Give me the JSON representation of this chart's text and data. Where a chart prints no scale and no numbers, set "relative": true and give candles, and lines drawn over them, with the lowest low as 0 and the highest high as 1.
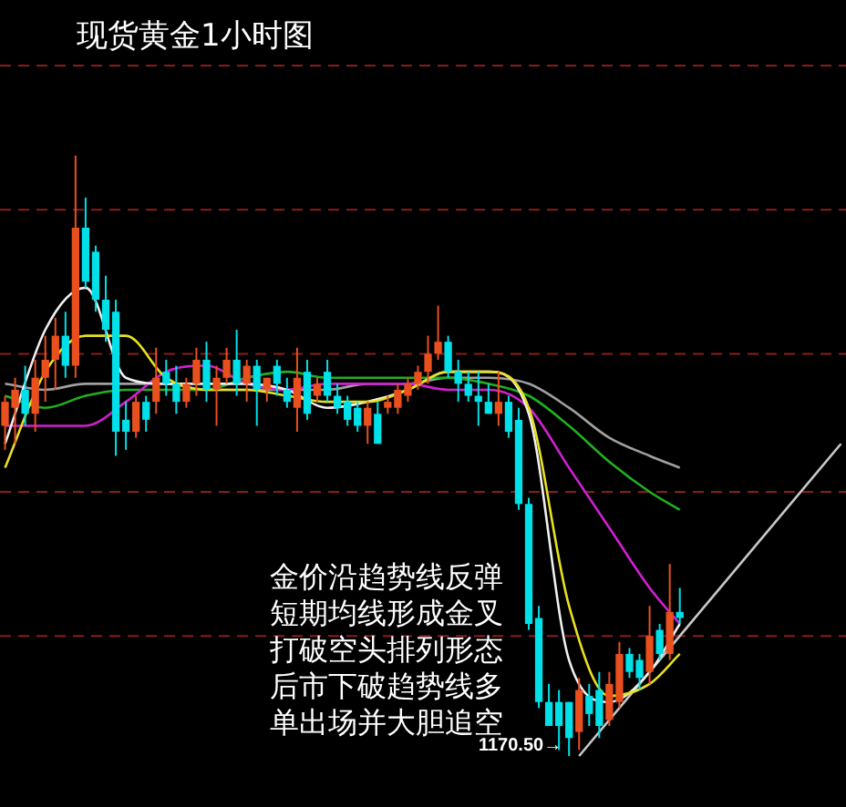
{
  "chart_data": {
    "type": "candlestick",
    "title": "现货黄金1小时图",
    "relative": true,
    "tick_labels": false,
    "categories": [
      null,
      null,
      null,
      null,
      null,
      null,
      null,
      null,
      null,
      null,
      null,
      null,
      null,
      null,
      null,
      null,
      null,
      null,
      null,
      null,
      null,
      null,
      null,
      null,
      null,
      null,
      null,
      null,
      null,
      null,
      null,
      null,
      null,
      null,
      null,
      null,
      null,
      null,
      null,
      null,
      null,
      null,
      null,
      null,
      null,
      null,
      null,
      null,
      null,
      null,
      null,
      null,
      null,
      null,
      null,
      null,
      null,
      null,
      null,
      null,
      null,
      null,
      null,
      null,
      null,
      null,
      null,
      null,
      null,
      null,
      null,
      null,
      null,
      null,
      null,
      null,
      null,
      null,
      null,
      null,
      null,
      null,
      null,
      null
    ],
    "ohlc": [
      [
        0.55,
        0.6,
        0.51,
        0.59
      ],
      [
        0.58,
        0.63,
        0.52,
        0.61
      ],
      [
        0.61,
        0.65,
        0.55,
        0.57
      ],
      [
        0.57,
        0.66,
        0.54,
        0.63
      ],
      [
        0.63,
        0.7,
        0.59,
        0.66
      ],
      [
        0.66,
        0.73,
        0.61,
        0.7
      ],
      [
        0.7,
        0.74,
        0.63,
        0.65
      ],
      [
        0.65,
        1,
        0.63,
        0.88
      ],
      [
        0.88,
        0.93,
        0.78,
        0.79
      ],
      [
        0.84,
        0.85,
        0.74,
        0.76
      ],
      [
        0.76,
        0.8,
        0.69,
        0.71
      ],
      [
        0.74,
        0.76,
        0.5,
        0.54
      ],
      [
        0.56,
        0.59,
        0.51,
        0.54
      ],
      [
        0.54,
        0.6,
        0.53,
        0.59
      ],
      [
        0.59,
        0.6,
        0.54,
        0.56
      ],
      [
        0.59,
        0.68,
        0.57,
        0.63
      ],
      [
        0.64,
        0.66,
        0.6,
        0.62
      ],
      [
        0.62,
        0.65,
        0.57,
        0.59
      ],
      [
        0.59,
        0.63,
        0.58,
        0.62
      ],
      [
        0.62,
        0.68,
        0.6,
        0.66
      ],
      [
        0.66,
        0.69,
        0.59,
        0.61
      ],
      [
        0.61,
        0.65,
        0.55,
        0.63
      ],
      [
        0.63,
        0.68,
        0.62,
        0.66
      ],
      [
        0.66,
        0.71,
        0.6,
        0.62
      ],
      [
        0.62,
        0.66,
        0.59,
        0.65
      ],
      [
        0.65,
        0.66,
        0.55,
        0.61
      ],
      [
        0.61,
        0.63,
        0.59,
        0.63
      ],
      [
        0.65,
        0.66,
        0.6,
        0.62
      ],
      [
        0.61,
        0.63,
        0.58,
        0.59
      ],
      [
        0.58,
        0.68,
        0.54,
        0.63
      ],
      [
        0.64,
        0.66,
        0.56,
        0.57
      ],
      [
        0.6,
        0.63,
        0.59,
        0.62
      ],
      [
        0.64,
        0.66,
        0.59,
        0.6
      ],
      [
        0.6,
        0.62,
        0.57,
        0.58
      ],
      [
        0.59,
        0.6,
        0.55,
        0.56
      ],
      [
        0.58,
        0.59,
        0.54,
        0.55
      ],
      [
        0.55,
        0.59,
        0.52,
        0.58
      ],
      [
        0.57,
        0.59,
        0.52,
        0.52
      ],
      [
        0.58,
        0.6,
        0.57,
        0.59
      ],
      [
        0.58,
        0.62,
        0.57,
        0.61
      ],
      [
        0.6,
        0.63,
        0.59,
        0.62
      ],
      [
        0.62,
        0.65,
        0.61,
        0.64
      ],
      [
        0.64,
        0.7,
        0.62,
        0.67
      ],
      [
        0.67,
        0.75,
        0.66,
        0.69
      ],
      [
        0.69,
        0.7,
        0.63,
        0.64
      ],
      [
        0.64,
        0.66,
        0.59,
        0.62
      ],
      [
        0.62,
        0.64,
        0.59,
        0.6
      ],
      [
        0.6,
        0.64,
        0.55,
        0.59
      ],
      [
        0.59,
        0.62,
        0.57,
        0.57
      ],
      [
        0.57,
        0.64,
        0.55,
        0.59
      ],
      [
        0.59,
        0.6,
        0.53,
        0.54
      ],
      [
        0.56,
        0.58,
        0.41,
        0.42
      ],
      [
        0.42,
        0.43,
        0.21,
        0.22
      ],
      [
        0.23,
        0.25,
        0.08,
        0.09
      ],
      [
        0.09,
        0.12,
        0.05,
        0.05
      ],
      [
        0.09,
        0.11,
        0.01,
        0.05
      ],
      [
        0.09,
        0.09,
        0,
        0.03
      ],
      [
        0.04,
        0.13,
        0.01,
        0.11
      ],
      [
        0.1,
        0.12,
        0.05,
        0.07
      ],
      [
        0.11,
        0.14,
        0.03,
        0.05
      ],
      [
        0.06,
        0.14,
        0.05,
        0.12
      ],
      [
        0.09,
        0.19,
        0.08,
        0.17
      ],
      [
        0.17,
        0.18,
        0.13,
        0.14
      ],
      [
        0.16,
        0.17,
        0.11,
        0.13
      ],
      [
        0.14,
        0.25,
        0.12,
        0.2
      ],
      [
        0.21,
        0.22,
        0.16,
        0.17
      ],
      [
        0.17,
        0.32,
        0.16,
        0.24
      ],
      [
        0.24,
        0.28,
        0.22,
        0.23
      ],
      null,
      null,
      null,
      null,
      null,
      null,
      null,
      null,
      null,
      null,
      null,
      null,
      null,
      null,
      null,
      null
    ],
    "colors": [
      "#e8501e",
      "#e8501e",
      "#00e0e8",
      "#e8501e",
      "#e8501e",
      "#e8501e",
      "#00e0e8",
      "#e8501e",
      "#00e0e8",
      "#00e0e8",
      "#00e0e8",
      "#00e0e8",
      "#00e0e8",
      "#e8501e",
      "#00e0e8",
      "#e8501e",
      "#00e0e8",
      "#00e0e8",
      "#e8501e",
      "#e8501e",
      "#00e0e8",
      "#e8501e",
      "#e8501e",
      "#00e0e8",
      "#e8501e",
      "#00e0e8",
      "#e8501e",
      "#00e0e8",
      "#00e0e8",
      "#e8501e",
      "#00e0e8",
      "#e8501e",
      "#00e0e8",
      "#00e0e8",
      "#00e0e8",
      "#00e0e8",
      "#e8501e",
      "#00e0e8",
      "#e8501e",
      "#e8501e",
      "#e8501e",
      "#e8501e",
      "#e8501e",
      "#e8501e",
      "#00e0e8",
      "#00e0e8",
      "#00e0e8",
      "#00e0e8",
      "#00e0e8",
      "#e8501e",
      "#00e0e8",
      "#00e0e8",
      "#00e0e8",
      "#00e0e8",
      "#00e0e8",
      "#00e0e8",
      "#00e0e8",
      "#e8501e",
      "#00e0e8",
      "#00e0e8",
      "#e8501e",
      "#e8501e",
      "#00e0e8",
      "#00e0e8",
      "#e8501e",
      "#00e0e8",
      "#e8501e",
      "#00e0e8",
      null,
      null,
      null,
      null,
      null,
      null,
      null,
      null,
      null,
      null,
      null,
      null,
      null,
      null,
      null,
      null
    ],
    "series": [
      {
        "type": "line",
        "color": "#e8e020",
        "values": [
          0.48,
          null,
          null,
          null,
          0.64,
          null,
          null,
          null,
          0.7,
          null,
          null,
          null,
          0.7,
          null,
          null,
          null,
          0.63,
          null,
          null,
          null,
          0.61,
          null,
          null,
          null,
          0.61,
          null,
          null,
          null,
          0.6,
          null,
          null,
          null,
          0.59,
          null,
          null,
          null,
          0.59,
          null,
          null,
          null,
          0.61,
          null,
          null,
          null,
          0.64,
          null,
          null,
          null,
          0.64,
          null,
          null,
          null,
          0.58,
          null,
          null,
          null,
          0.25,
          null,
          null,
          null,
          0.1,
          null,
          null,
          null,
          0.12,
          null,
          null,
          0.17,
          null,
          null,
          null,
          null,
          null,
          null,
          null,
          null,
          null,
          null,
          null,
          null,
          null,
          null,
          null,
          null
        ]
      },
      {
        "type": "line",
        "color": "#f0f0f0",
        "values": [
          0.52,
          null,
          null,
          null,
          0.71,
          null,
          null,
          null,
          0.78,
          null,
          null,
          null,
          0.63,
          null,
          null,
          null,
          0.62,
          null,
          null,
          null,
          0.62,
          null,
          null,
          null,
          0.62,
          null,
          null,
          null,
          0.61,
          null,
          null,
          null,
          0.58,
          null,
          null,
          null,
          0.59,
          null,
          null,
          null,
          0.61,
          null,
          null,
          null,
          0.64,
          null,
          null,
          null,
          0.64,
          null,
          null,
          null,
          0.57,
          null,
          null,
          null,
          0.16,
          null,
          null,
          null,
          0.09,
          null,
          null,
          null,
          0.14,
          null,
          null,
          0.22,
          null,
          null,
          null,
          null,
          null,
          null,
          null,
          null,
          null,
          null,
          null,
          null,
          null,
          null,
          null,
          null
        ]
      },
      {
        "type": "line",
        "color": "#d020d0",
        "values": [
          0.55,
          null,
          null,
          null,
          0.55,
          null,
          null,
          null,
          0.55,
          null,
          null,
          null,
          0.59,
          null,
          null,
          null,
          0.64,
          null,
          null,
          null,
          0.65,
          null,
          null,
          null,
          0.62,
          null,
          null,
          null,
          0.61,
          null,
          null,
          null,
          0.62,
          null,
          null,
          null,
          0.62,
          null,
          null,
          null,
          0.62,
          null,
          null,
          null,
          0.61,
          null,
          null,
          null,
          0.61,
          null,
          null,
          null,
          0.58,
          null,
          null,
          null,
          0.48,
          null,
          null,
          null,
          0.38,
          null,
          null,
          null,
          0.28,
          null,
          null,
          0.22,
          null,
          null,
          null,
          null,
          null,
          null,
          null,
          null,
          null,
          null,
          null,
          null,
          null,
          null,
          null,
          null
        ]
      },
      {
        "type": "line",
        "color": "#20b020",
        "values": [
          0.6,
          null,
          null,
          null,
          0.58,
          null,
          null,
          null,
          0.6,
          null,
          null,
          null,
          0.61,
          null,
          null,
          null,
          0.61,
          null,
          null,
          null,
          0.61,
          null,
          null,
          null,
          0.63,
          null,
          null,
          null,
          0.64,
          null,
          null,
          null,
          0.63,
          null,
          null,
          null,
          0.63,
          null,
          null,
          null,
          0.63,
          null,
          null,
          null,
          0.63,
          null,
          null,
          null,
          0.62,
          null,
          null,
          null,
          0.6,
          null,
          null,
          null,
          0.55,
          null,
          null,
          null,
          0.49,
          null,
          null,
          null,
          0.44,
          null,
          null,
          0.41,
          null,
          null,
          null,
          null,
          null,
          null,
          null,
          null,
          null,
          null,
          null,
          null,
          null,
          null,
          null,
          null
        ]
      },
      {
        "type": "line",
        "color": "#a0a0a0",
        "values": [
          0.62,
          null,
          null,
          null,
          0.61,
          null,
          null,
          null,
          0.62,
          null,
          null,
          null,
          0.62,
          null,
          null,
          null,
          0.62,
          null,
          null,
          null,
          0.61,
          null,
          null,
          null,
          0.61,
          null,
          null,
          null,
          0.61,
          null,
          null,
          null,
          0.61,
          null,
          null,
          null,
          0.62,
          null,
          null,
          null,
          0.62,
          null,
          null,
          null,
          0.63,
          null,
          null,
          null,
          0.63,
          null,
          null,
          null,
          0.62,
          null,
          null,
          null,
          0.58,
          null,
          null,
          null,
          0.53,
          null,
          null,
          null,
          0.5,
          null,
          null,
          0.48,
          null,
          null,
          null,
          null,
          null,
          null,
          null,
          null,
          null,
          null,
          null,
          null,
          null,
          null,
          null,
          null
        ]
      },
      {
        "type": "line",
        "color": "#c8c8c8",
        "values": [
          null,
          null,
          null,
          null,
          null,
          null,
          null,
          null,
          null,
          null,
          null,
          null,
          null,
          null,
          null,
          null,
          null,
          null,
          null,
          null,
          null,
          null,
          null,
          null,
          null,
          null,
          null,
          null,
          null,
          null,
          null,
          null,
          null,
          null,
          null,
          null,
          null,
          null,
          null,
          null,
          null,
          null,
          null,
          null,
          null,
          null,
          null,
          null,
          null,
          null,
          null,
          null,
          null,
          null,
          null,
          null,
          null,
          0,
          null,
          null,
          null,
          null,
          null,
          null,
          null,
          null,
          null,
          null,
          null,
          null,
          null,
          null,
          null,
          null,
          null,
          null,
          null,
          null,
          null,
          null,
          null,
          null,
          null,
          0.52
        ]
      }
    ],
    "ref_lines": [
      {
        "axis": "y",
        "value": 1.15,
        "color": "#8b1c1c",
        "line_style": "dashed"
      },
      {
        "axis": "y",
        "value": 0.91,
        "color": "#8b1c1c",
        "line_style": "dashed"
      },
      {
        "axis": "y",
        "value": 0.67,
        "color": "#8b1c1c",
        "line_style": "dashed"
      },
      {
        "axis": "y",
        "value": 0.44,
        "color": "#8b1c1c",
        "line_style": "dashed"
      },
      {
        "axis": "y",
        "value": 0.2,
        "color": "#8b1c1c",
        "line_style": "dashed"
      }
    ],
    "annotations": [
      "1170.50→",
      "金价沿趋势线反弹",
      "短期均线形成金叉",
      "打破空头排列形态",
      "后市下破趋势线多",
      "单出场并大胆追空"
    ]
  }
}
